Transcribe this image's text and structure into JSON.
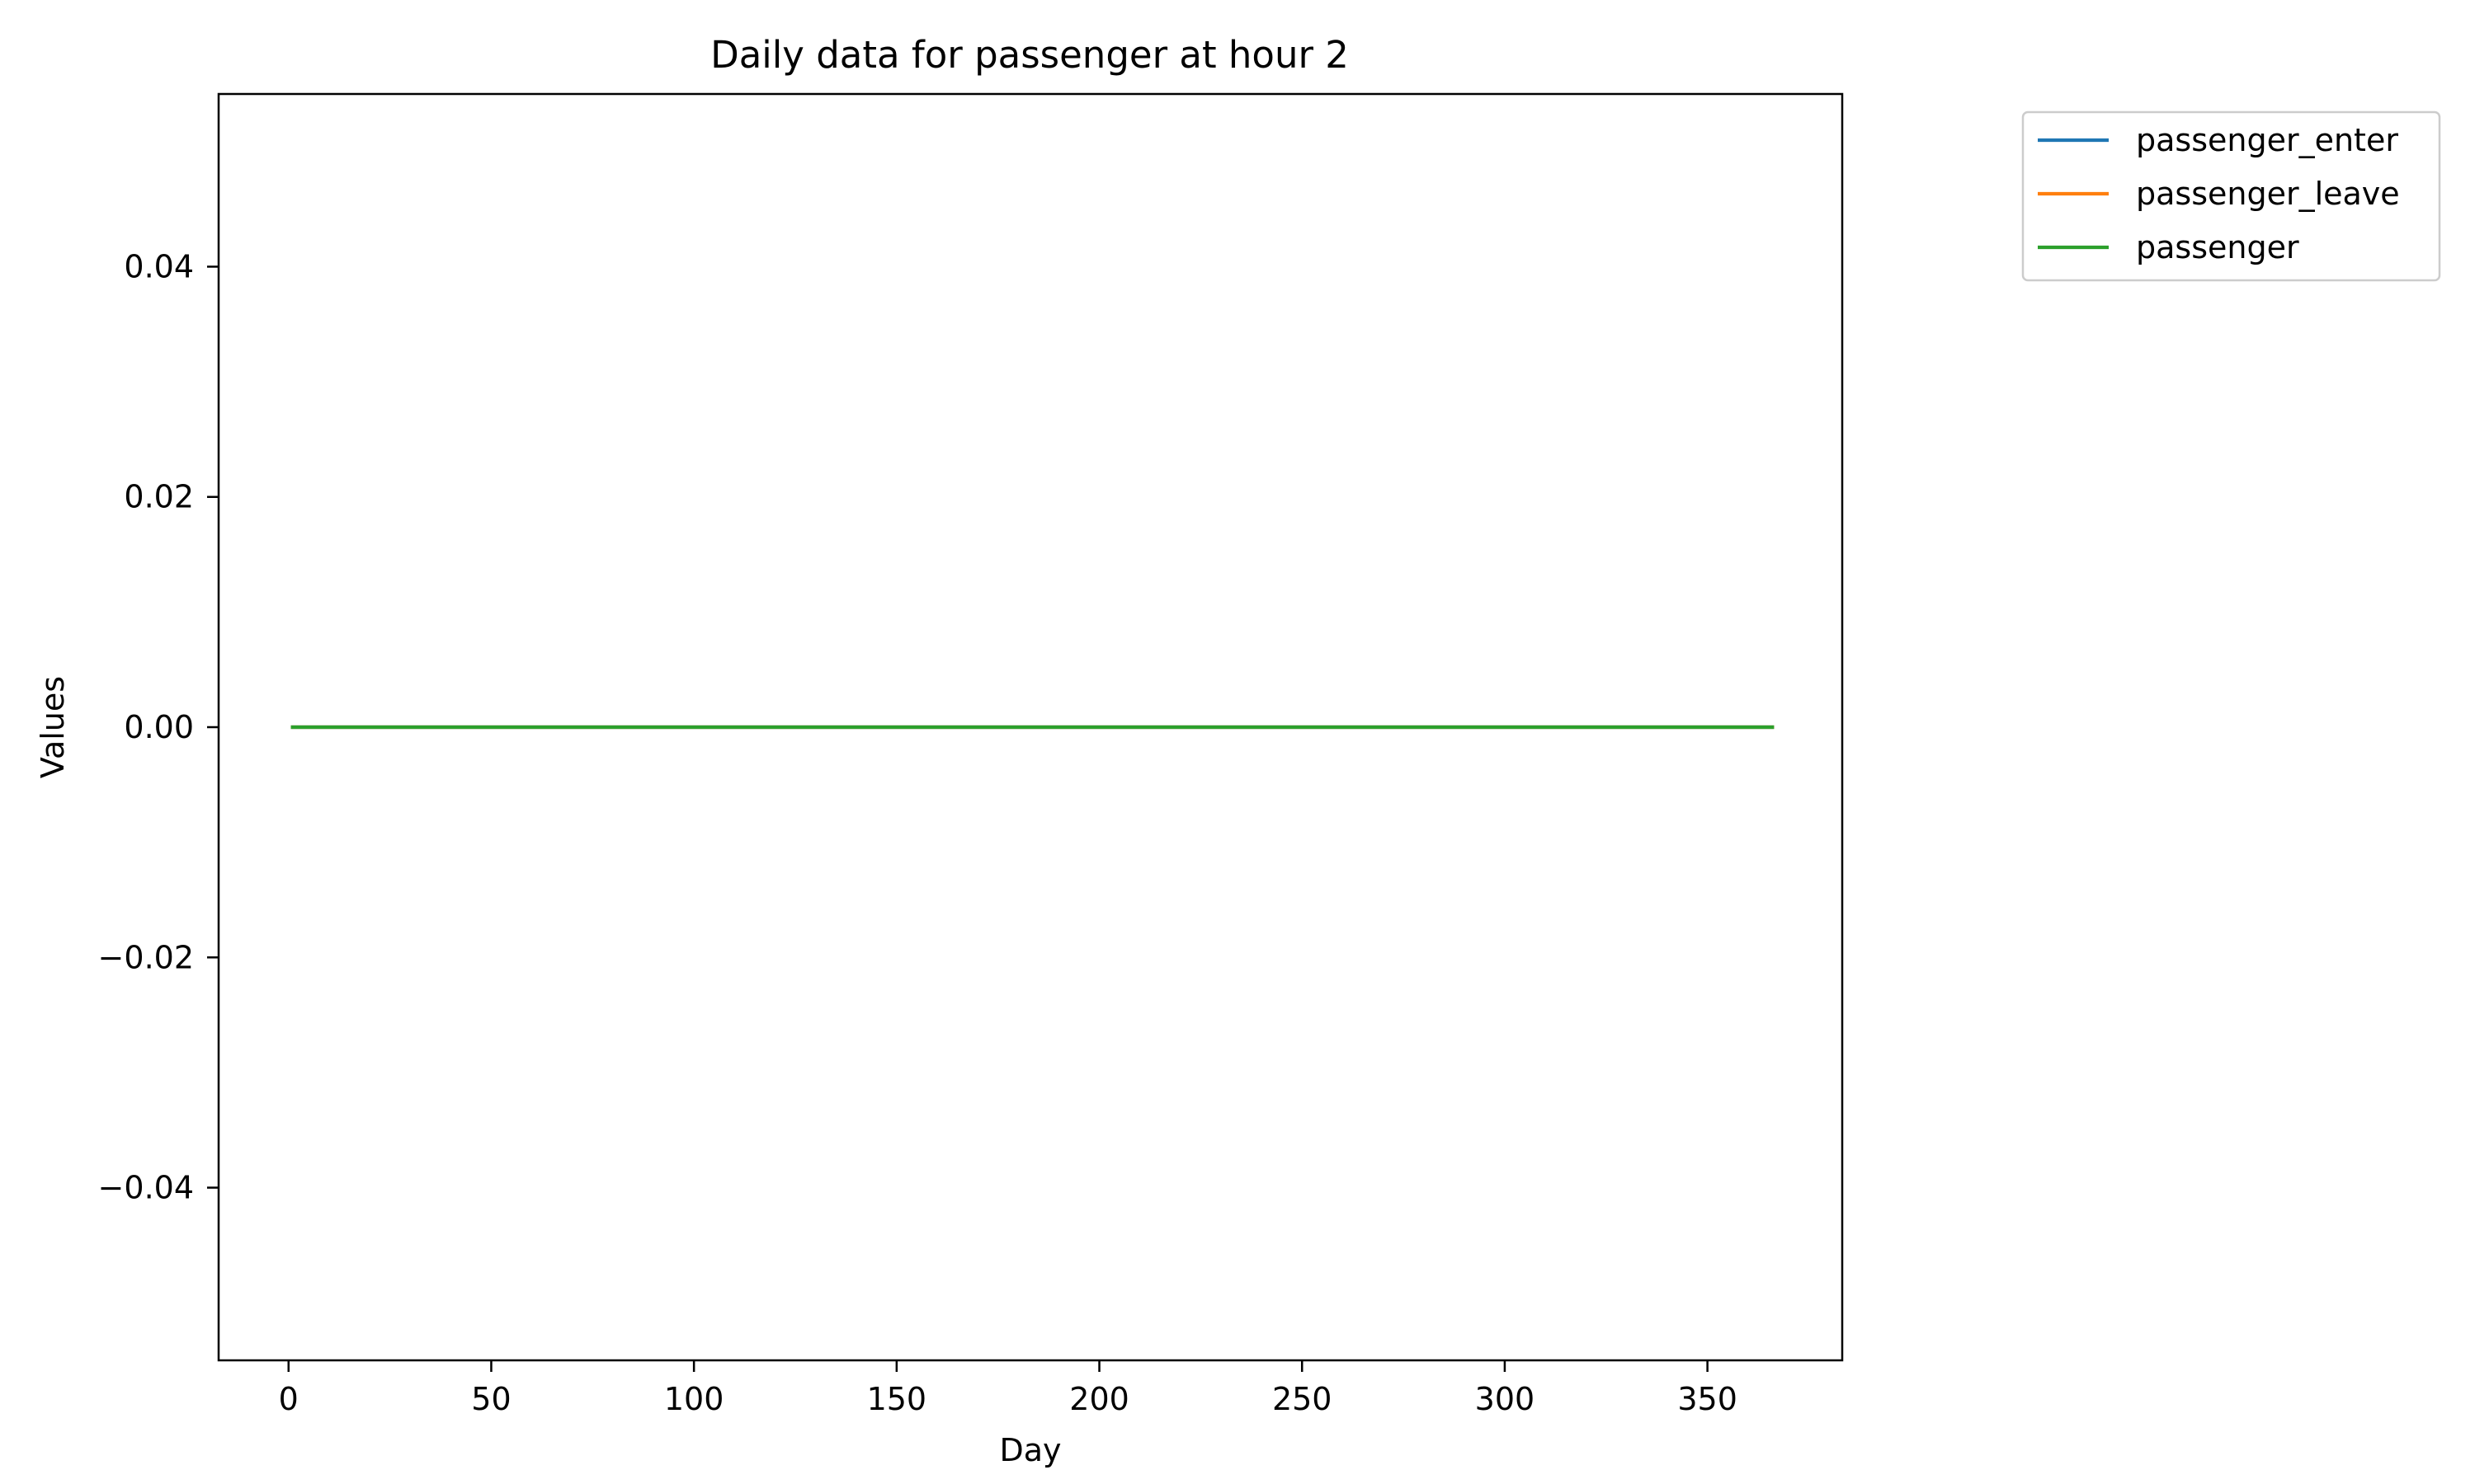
{
  "chart_data": {
    "type": "line",
    "title": "Daily data for passenger at hour 2",
    "xlabel": "Day",
    "ylabel": "Values",
    "xlim": [
      -17.25,
      383.25
    ],
    "ylim": [
      -0.055,
      0.055
    ],
    "x_ticks": [
      0,
      50,
      100,
      150,
      200,
      250,
      300,
      350
    ],
    "x_tick_labels": [
      "0",
      "50",
      "100",
      "150",
      "200",
      "250",
      "300",
      "350"
    ],
    "y_ticks": [
      -0.04,
      -0.02,
      0.0,
      0.02,
      0.04
    ],
    "y_tick_labels": [
      "−0.04",
      "−0.02",
      "0.00",
      "0.02",
      "0.04"
    ],
    "grid": false,
    "legend_position": "outside-top-right",
    "series": [
      {
        "name": "passenger_enter",
        "color": "#1f77b4",
        "x": [
          1,
          366
        ],
        "y": [
          0,
          0
        ]
      },
      {
        "name": "passenger_leave",
        "color": "#ff7f0e",
        "x": [
          1,
          366
        ],
        "y": [
          0,
          0
        ]
      },
      {
        "name": "passenger",
        "color": "#2ca02c",
        "x": [
          1,
          366
        ],
        "y": [
          0,
          0
        ]
      }
    ]
  }
}
